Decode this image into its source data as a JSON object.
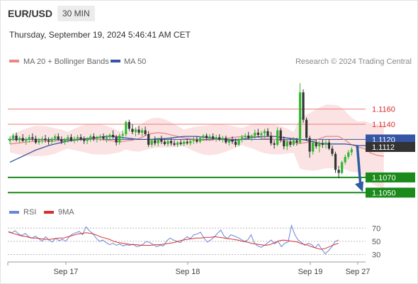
{
  "header": {
    "symbol": "EUR/USD",
    "timeframe": "30 MIN"
  },
  "datetime": "Thursday, September 19, 2024 5:46:41 AM CET",
  "legend": {
    "ma20": "MA 20 + Bollinger Bands",
    "ma50": "MA 50",
    "credit": "Research © 2024 Trading Central"
  },
  "rsi_legend": {
    "rsi": "RSI",
    "ma": "9MA"
  },
  "colors": {
    "up": "#2eb82e",
    "down": "#333333",
    "ma20": "#e88888",
    "ma50": "#3556a4",
    "band": "#fbe0e0",
    "support": "#1a8a1a",
    "resistance": "#ef7a7a",
    "arrow": "#2f5c9e",
    "rsi": "#6b86d6",
    "rsi_ma": "#d93030"
  },
  "chart_data": [
    {
      "type": "candlestick",
      "title": "EUR/USD",
      "timeframe": "30 MIN",
      "x_ticks": [
        "Sep 17",
        "Sep 18",
        "Sep 19",
        "Sep 27"
      ],
      "ylim": [
        1.104,
        1.1212
      ],
      "levels": [
        {
          "value": 1.116,
          "label": "1.1160",
          "kind": "resistance"
        },
        {
          "value": 1.114,
          "label": "1.1140",
          "kind": "resistance"
        },
        {
          "value": 1.112,
          "label": "1.1120",
          "kind": "current"
        },
        {
          "value": 1.1112,
          "label": "1.1112",
          "kind": "last"
        },
        {
          "value": 1.107,
          "label": "1.1070",
          "kind": "support"
        },
        {
          "value": 1.105,
          "label": "1.1050",
          "kind": "support"
        }
      ],
      "forecast": {
        "from": 1.1112,
        "to": 1.105,
        "direction": "down"
      },
      "candles": [
        [
          1.1118,
          1.1124,
          1.1114,
          1.1121
        ],
        [
          1.1121,
          1.1128,
          1.1118,
          1.1125
        ],
        [
          1.1125,
          1.1129,
          1.1117,
          1.1119
        ],
        [
          1.1119,
          1.1124,
          1.1115,
          1.1122
        ],
        [
          1.1122,
          1.1127,
          1.1117,
          1.1118
        ],
        [
          1.1118,
          1.1123,
          1.1113,
          1.112
        ],
        [
          1.112,
          1.1126,
          1.1116,
          1.1123
        ],
        [
          1.1123,
          1.1128,
          1.1118,
          1.1121
        ],
        [
          1.1121,
          1.1125,
          1.1114,
          1.1116
        ],
        [
          1.1116,
          1.1122,
          1.1113,
          1.1119
        ],
        [
          1.1119,
          1.1124,
          1.1115,
          1.1121
        ],
        [
          1.1121,
          1.1126,
          1.1116,
          1.1119
        ],
        [
          1.1119,
          1.1123,
          1.1113,
          1.1117
        ],
        [
          1.1117,
          1.1123,
          1.1114,
          1.1121
        ],
        [
          1.1121,
          1.1127,
          1.1117,
          1.1124
        ],
        [
          1.1124,
          1.1128,
          1.1118,
          1.112
        ],
        [
          1.112,
          1.1124,
          1.1114,
          1.1117
        ],
        [
          1.1117,
          1.1122,
          1.1113,
          1.112
        ],
        [
          1.112,
          1.1126,
          1.1116,
          1.1123
        ],
        [
          1.1123,
          1.1127,
          1.1117,
          1.1119
        ],
        [
          1.1119,
          1.1124,
          1.1115,
          1.1121
        ],
        [
          1.1121,
          1.1126,
          1.1117,
          1.1123
        ],
        [
          1.1123,
          1.1127,
          1.1118,
          1.112
        ],
        [
          1.112,
          1.1124,
          1.1114,
          1.1118
        ],
        [
          1.1118,
          1.1123,
          1.1114,
          1.1121
        ],
        [
          1.1121,
          1.1127,
          1.1117,
          1.1124
        ],
        [
          1.1124,
          1.1128,
          1.1118,
          1.1121
        ],
        [
          1.1121,
          1.1125,
          1.1116,
          1.1122
        ],
        [
          1.1122,
          1.1127,
          1.1118,
          1.1124
        ],
        [
          1.1124,
          1.1128,
          1.1119,
          1.1121
        ],
        [
          1.1121,
          1.1126,
          1.1116,
          1.1123
        ],
        [
          1.1123,
          1.1128,
          1.1119,
          1.1126
        ],
        [
          1.1126,
          1.1132,
          1.1121,
          1.1123
        ],
        [
          1.1123,
          1.1126,
          1.1112,
          1.1116
        ],
        [
          1.1116,
          1.1128,
          1.1113,
          1.1125
        ],
        [
          1.1125,
          1.1132,
          1.112,
          1.1127
        ],
        [
          1.1127,
          1.1145,
          1.1124,
          1.1143
        ],
        [
          1.1143,
          1.1146,
          1.1131,
          1.1134
        ],
        [
          1.1134,
          1.114,
          1.1127,
          1.113
        ],
        [
          1.113,
          1.1136,
          1.1124,
          1.1133
        ],
        [
          1.1133,
          1.1138,
          1.1126,
          1.1129
        ],
        [
          1.1129,
          1.1135,
          1.1124,
          1.1132
        ],
        [
          1.1132,
          1.1137,
          1.1125,
          1.1127
        ],
        [
          1.1127,
          1.1131,
          1.111,
          1.1113
        ],
        [
          1.1113,
          1.1121,
          1.111,
          1.1119
        ],
        [
          1.1119,
          1.1124,
          1.1112,
          1.1115
        ],
        [
          1.1115,
          1.1122,
          1.1111,
          1.112
        ],
        [
          1.112,
          1.1125,
          1.1114,
          1.1117
        ],
        [
          1.1117,
          1.1121,
          1.1112,
          1.1114
        ],
        [
          1.1114,
          1.112,
          1.1111,
          1.1118
        ],
        [
          1.1118,
          1.1122,
          1.1112,
          1.1115
        ],
        [
          1.1115,
          1.1119,
          1.1111,
          1.1113
        ],
        [
          1.1113,
          1.1118,
          1.111,
          1.1116
        ],
        [
          1.1116,
          1.112,
          1.1112,
          1.1114
        ],
        [
          1.1114,
          1.1119,
          1.1111,
          1.1117
        ],
        [
          1.1117,
          1.1121,
          1.1113,
          1.1115
        ],
        [
          1.1115,
          1.112,
          1.1112,
          1.1118
        ],
        [
          1.1118,
          1.1123,
          1.1114,
          1.112
        ],
        [
          1.112,
          1.1124,
          1.1115,
          1.1117
        ],
        [
          1.1117,
          1.1124,
          1.1115,
          1.1122
        ],
        [
          1.1122,
          1.1127,
          1.1118,
          1.1125
        ],
        [
          1.1125,
          1.1128,
          1.1119,
          1.1122
        ],
        [
          1.1122,
          1.1127,
          1.1118,
          1.1124
        ],
        [
          1.1124,
          1.1128,
          1.1119,
          1.1121
        ],
        [
          1.1121,
          1.1126,
          1.1117,
          1.1123
        ],
        [
          1.1123,
          1.1127,
          1.1118,
          1.112
        ],
        [
          1.112,
          1.1125,
          1.1116,
          1.1122
        ],
        [
          1.1122,
          1.1125,
          1.1114,
          1.1116
        ],
        [
          1.1116,
          1.1121,
          1.1112,
          1.1119
        ],
        [
          1.1119,
          1.1124,
          1.1114,
          1.1117
        ],
        [
          1.1117,
          1.1121,
          1.111,
          1.1113
        ],
        [
          1.1113,
          1.1122,
          1.1111,
          1.112
        ],
        [
          1.112,
          1.1126,
          1.1116,
          1.1123
        ],
        [
          1.1123,
          1.1128,
          1.1119,
          1.1125
        ],
        [
          1.1125,
          1.113,
          1.112,
          1.1122
        ],
        [
          1.1122,
          1.1127,
          1.1118,
          1.1125
        ],
        [
          1.1125,
          1.1133,
          1.1121,
          1.1129
        ],
        [
          1.1129,
          1.1134,
          1.1123,
          1.1126
        ],
        [
          1.1126,
          1.1131,
          1.112,
          1.1128
        ],
        [
          1.1128,
          1.1134,
          1.1122,
          1.1131
        ],
        [
          1.1131,
          1.1135,
          1.1123,
          1.1125
        ],
        [
          1.1125,
          1.113,
          1.1112,
          1.1115
        ],
        [
          1.1115,
          1.1119,
          1.1108,
          1.1113
        ],
        [
          1.1113,
          1.1136,
          1.1111,
          1.1132
        ],
        [
          1.1132,
          1.1135,
          1.1116,
          1.1119
        ],
        [
          1.1119,
          1.1124,
          1.1107,
          1.1111
        ],
        [
          1.1111,
          1.112,
          1.1106,
          1.1117
        ],
        [
          1.1117,
          1.1121,
          1.111,
          1.1113
        ],
        [
          1.1113,
          1.1123,
          1.1111,
          1.1119
        ],
        [
          1.1119,
          1.1122,
          1.1112,
          1.1116
        ],
        [
          1.1116,
          1.1194,
          1.1114,
          1.1182
        ],
        [
          1.1182,
          1.1186,
          1.1142,
          1.1146
        ],
        [
          1.1146,
          1.1149,
          1.1118,
          1.1122
        ],
        [
          1.1122,
          1.1125,
          1.1096,
          1.1104
        ],
        [
          1.1104,
          1.1119,
          1.11,
          1.1116
        ],
        [
          1.1116,
          1.112,
          1.1108,
          1.1111
        ],
        [
          1.1111,
          1.1118,
          1.1103,
          1.1115
        ],
        [
          1.1115,
          1.112,
          1.1109,
          1.1113
        ],
        [
          1.1113,
          1.1119,
          1.1108,
          1.1116
        ],
        [
          1.1116,
          1.112,
          1.1106,
          1.1108
        ],
        [
          1.1108,
          1.1112,
          1.1098,
          1.1101
        ],
        [
          1.1101,
          1.1104,
          1.1076,
          1.108
        ],
        [
          1.108,
          1.1085,
          1.1069,
          1.1076
        ],
        [
          1.1076,
          1.1092,
          1.1074,
          1.109
        ],
        [
          1.109,
          1.11,
          1.1087,
          1.1097
        ],
        [
          1.1097,
          1.1106,
          1.1094,
          1.1103
        ],
        [
          1.1103,
          1.111,
          1.1099,
          1.1107
        ]
      ],
      "ma20": [
        1.1114,
        1.1115,
        1.1116,
        1.1117,
        1.1118,
        1.1118,
        1.1118,
        1.1118,
        1.1119,
        1.1119,
        1.112,
        1.1121,
        1.1121,
        1.112,
        1.112,
        1.1119,
        1.1118,
        1.1117,
        1.1118,
        1.1119,
        1.1121,
        1.1125,
        1.1128,
        1.1129,
        1.1128,
        1.1126,
        1.1124,
        1.1122,
        1.1121,
        1.112,
        1.1119,
        1.1119,
        1.112,
        1.1121,
        1.1122,
        1.1123,
        1.1124,
        1.1124,
        1.1124,
        1.1122,
        1.1121,
        1.112,
        1.1119,
        1.1118,
        1.1116,
        1.1115,
        1.1116,
        1.1118,
        1.1121,
        1.1124,
        1.1124,
        1.1124,
        1.1119,
        1.1113,
        1.111,
        1.1108,
        1.1102,
        1.1099,
        1.1098
      ],
      "ma20_index_step": 2,
      "ma50": [
        1.109,
        1.1094,
        1.1098,
        1.1102,
        1.1106,
        1.1109,
        1.1112,
        1.1114,
        1.1116,
        1.1118,
        1.1119,
        1.112,
        1.1121,
        1.1122,
        1.1123,
        1.1124,
        1.1124,
        1.1123,
        1.1122,
        1.1121,
        1.112,
        1.112,
        1.112,
        1.1121,
        1.1121,
        1.1122,
        1.1123,
        1.1124,
        1.1124,
        1.1124,
        1.1123,
        1.1122,
        1.1121,
        1.112,
        1.1119,
        1.1119,
        1.112,
        1.1122,
        1.1123,
        1.1124,
        1.1124,
        1.1124,
        1.1123,
        1.1122,
        1.1121,
        1.112,
        1.1119,
        1.1117,
        1.1115,
        1.1114,
        1.1114,
        1.1114,
        1.1114,
        1.1113,
        1.1112,
        1.1112,
        1.1111,
        1.1111
      ],
      "ma50_index_step": 2
    },
    {
      "type": "line",
      "title": "RSI",
      "ylim": [
        22,
        80
      ],
      "y_ticks": [
        70,
        50,
        30
      ],
      "series": [
        {
          "name": "RSI",
          "values": [
            65,
            63,
            66,
            61,
            59,
            62,
            57,
            55,
            58,
            54,
            50,
            57,
            52,
            49,
            55,
            51,
            53,
            50,
            57,
            61,
            63,
            65,
            60,
            72,
            66,
            62,
            55,
            50,
            52,
            48,
            45,
            47,
            44,
            46,
            43,
            45,
            44,
            46,
            42,
            43,
            46,
            50,
            48,
            45,
            42,
            44,
            43,
            51,
            55,
            52,
            50,
            48,
            53,
            57,
            54,
            60,
            61,
            64,
            55,
            49,
            52,
            56,
            62,
            67,
            58,
            54,
            60,
            58,
            56,
            53,
            50,
            52,
            60,
            47,
            43,
            41,
            44,
            48,
            52,
            46,
            50,
            42,
            47,
            49,
            74,
            60,
            52,
            48,
            44,
            47,
            45,
            40,
            46,
            38,
            31,
            36,
            42,
            50,
            52
          ]
        },
        {
          "name": "9MA",
          "values": [
            64,
            62,
            60,
            58,
            57,
            55,
            55,
            54,
            53,
            53,
            54,
            55,
            55,
            57,
            59,
            61,
            62,
            63,
            62,
            60,
            57,
            55,
            53,
            50,
            48,
            47,
            46,
            45,
            45,
            44,
            44,
            44,
            45,
            45,
            46,
            47,
            48,
            50,
            52,
            53,
            54,
            55,
            55,
            56,
            56,
            57,
            56,
            55,
            54,
            53,
            52,
            50,
            49,
            47,
            46,
            45,
            44,
            45,
            48,
            51,
            52,
            51,
            50,
            49,
            46,
            45,
            42,
            40,
            38,
            39,
            42,
            45,
            47
          ]
        }
      ]
    }
  ]
}
